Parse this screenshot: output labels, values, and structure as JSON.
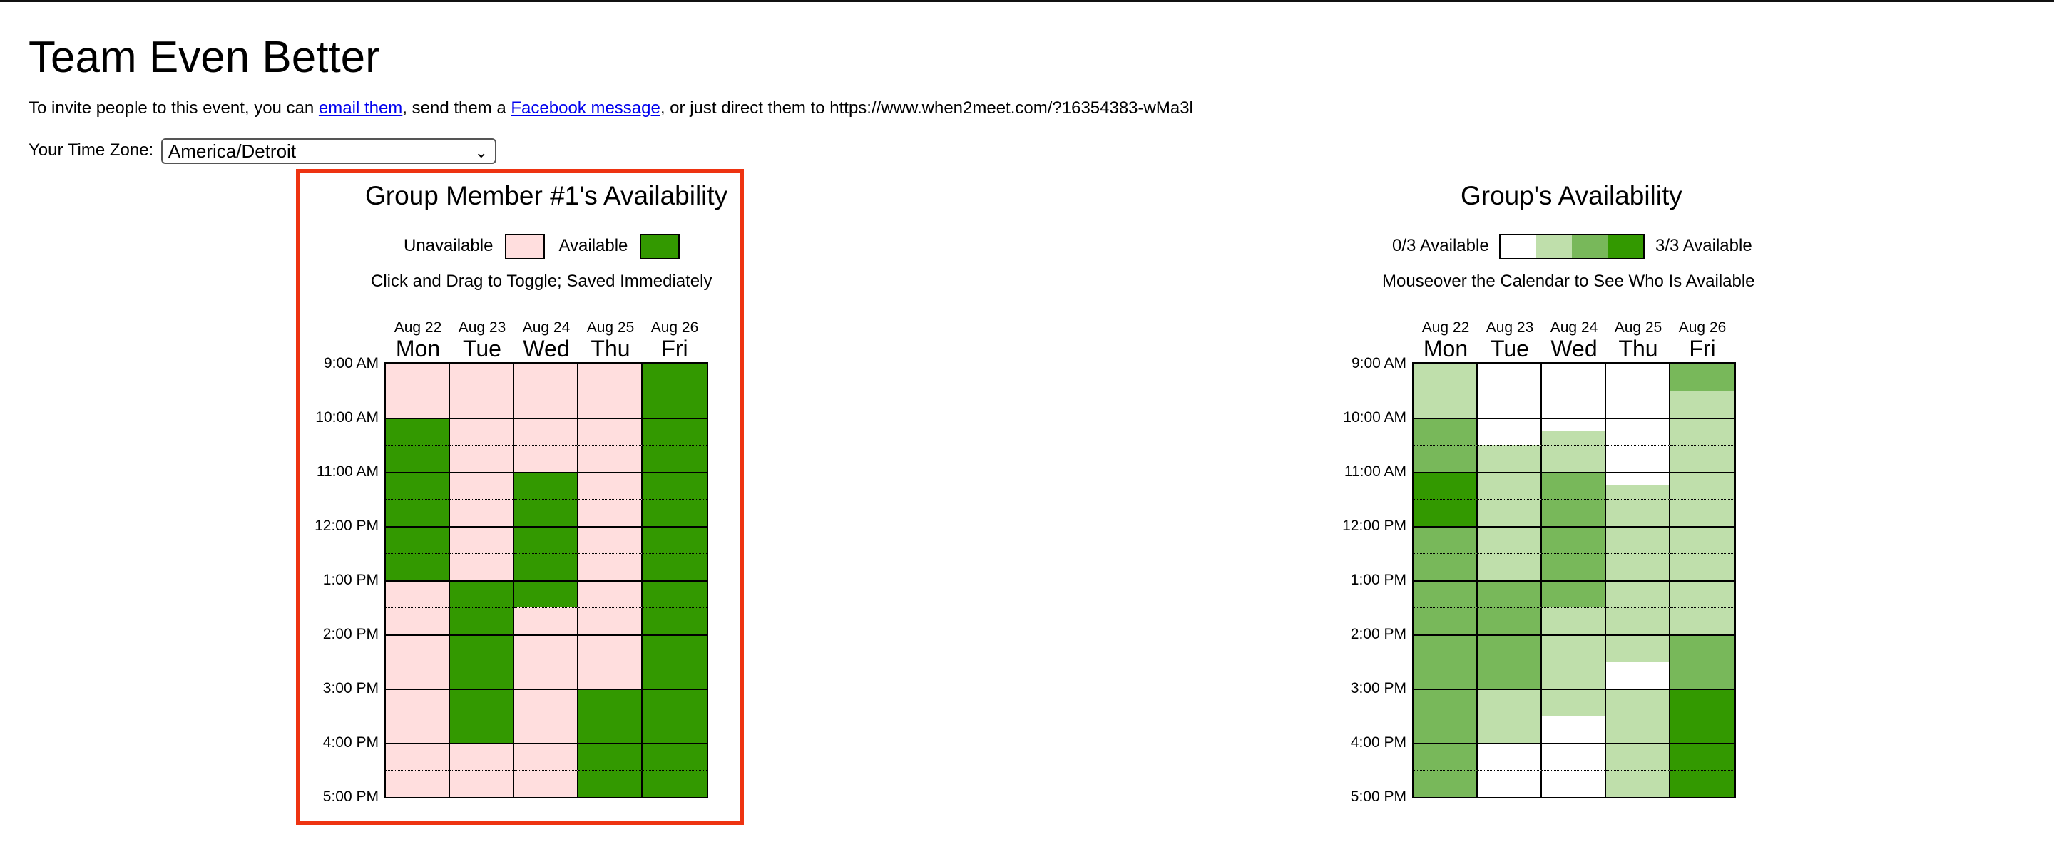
{
  "page": {
    "title": "Team Even Better",
    "invite": {
      "prefix": "To invite people to this event, you can ",
      "email_link": "email them",
      "middle": ", send them a ",
      "facebook_link": "Facebook message",
      "suffix": ", or just direct them to https://www.when2meet.com/?16354383-wMa3l"
    },
    "timezone": {
      "label": "Your Time Zone:",
      "value": "America/Detroit"
    }
  },
  "colors": {
    "unavailable": "#ffdede",
    "available": "#339900",
    "group_0": "#ffffff",
    "group_1": "#bfdfab",
    "group_2": "#78b85a",
    "group_3": "#339900",
    "highlight": "#ee3311"
  },
  "my_panel": {
    "title": "Group Member #1's Availability",
    "legend_unavailable": "Unavailable",
    "legend_available": "Available",
    "note": "Click and Drag to Toggle; Saved Immediately"
  },
  "group_panel": {
    "title": "Group's Availability",
    "legend_min": "0/3 Available",
    "legend_max": "3/3 Available",
    "note": "Mouseover the Calendar to See Who Is Available"
  },
  "days": [
    {
      "date": "Aug 22",
      "day": "Mon"
    },
    {
      "date": "Aug 23",
      "day": "Tue"
    },
    {
      "date": "Aug 24",
      "day": "Wed"
    },
    {
      "date": "Aug 25",
      "day": "Thu"
    },
    {
      "date": "Aug 26",
      "day": "Fri"
    }
  ],
  "times": [
    "9:00 AM",
    "10:00 AM",
    "11:00 AM",
    "12:00 PM",
    "1:00 PM",
    "2:00 PM",
    "3:00 PM",
    "4:00 PM",
    "5:00 PM"
  ],
  "my_availability": [
    [
      0,
      0,
      0,
      0,
      1
    ],
    [
      0,
      0,
      0,
      0,
      1
    ],
    [
      1,
      0,
      0,
      0,
      1
    ],
    [
      1,
      0,
      0,
      0,
      1
    ],
    [
      1,
      0,
      1,
      0,
      1
    ],
    [
      1,
      0,
      1,
      0,
      1
    ],
    [
      1,
      0,
      1,
      0,
      1
    ],
    [
      1,
      0,
      1,
      0,
      1
    ],
    [
      0,
      1,
      1,
      0,
      1
    ],
    [
      0,
      1,
      0,
      0,
      1
    ],
    [
      0,
      1,
      0,
      0,
      1
    ],
    [
      0,
      1,
      0,
      0,
      1
    ],
    [
      0,
      1,
      0,
      1,
      1
    ],
    [
      0,
      1,
      0,
      1,
      1
    ],
    [
      0,
      0,
      0,
      1,
      1
    ],
    [
      0,
      0,
      0,
      1,
      1
    ]
  ],
  "group_availability": [
    [
      1,
      0,
      0,
      0,
      2
    ],
    [
      1,
      0,
      0,
      0,
      1
    ],
    [
      2,
      0,
      0,
      0,
      1
    ],
    [
      2,
      1,
      1,
      0,
      1
    ],
    [
      3,
      1,
      2,
      0,
      1
    ],
    [
      3,
      1,
      2,
      1,
      1
    ],
    [
      2,
      1,
      2,
      1,
      1
    ],
    [
      2,
      1,
      2,
      1,
      1
    ],
    [
      2,
      2,
      2,
      1,
      1
    ],
    [
      2,
      2,
      1,
      1,
      1
    ],
    [
      2,
      2,
      1,
      1,
      2
    ],
    [
      2,
      2,
      1,
      0,
      2
    ],
    [
      2,
      1,
      1,
      1,
      3
    ],
    [
      2,
      1,
      0,
      1,
      3
    ],
    [
      2,
      0,
      0,
      1,
      3
    ],
    [
      2,
      0,
      0,
      1,
      3
    ]
  ],
  "group_partial_cells": [
    {
      "row": 2,
      "col": 2,
      "top_level": 0,
      "bottom_level": 1,
      "split": 0.45
    },
    {
      "row": 4,
      "col": 3,
      "top_level": 0,
      "bottom_level": 1,
      "split": 0.45
    }
  ]
}
